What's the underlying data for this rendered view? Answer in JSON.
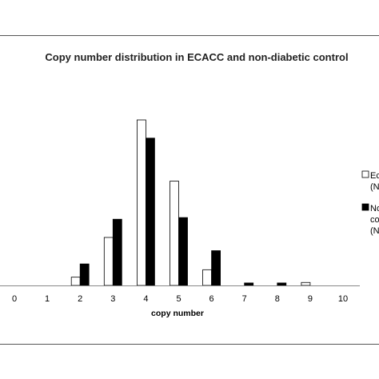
{
  "chart_data": {
    "type": "bar",
    "title": "Copy number distribution in ECACC and non-diabetic control",
    "xlabel": "copy number",
    "ylabel": "",
    "categories": [
      "0",
      "1",
      "2",
      "3",
      "4",
      "5",
      "6",
      "7",
      "8",
      "9",
      "10"
    ],
    "ylim": [
      0,
      1
    ],
    "series": [
      {
        "legend_lines": [
          "Ec",
          "(N"
        ],
        "color": "#ffffff",
        "values": [
          0,
          0,
          0.05,
          0.29,
          1.0,
          0.63,
          0.095,
          0,
          0,
          0.018,
          0
        ]
      },
      {
        "legend_lines": [
          "No",
          "co",
          "(N"
        ],
        "color": "#000000",
        "values": [
          0,
          0,
          0.13,
          0.4,
          0.89,
          0.41,
          0.21,
          0.015,
          0.015,
          0,
          0
        ]
      }
    ],
    "legend_position": "right",
    "grid": false
  }
}
